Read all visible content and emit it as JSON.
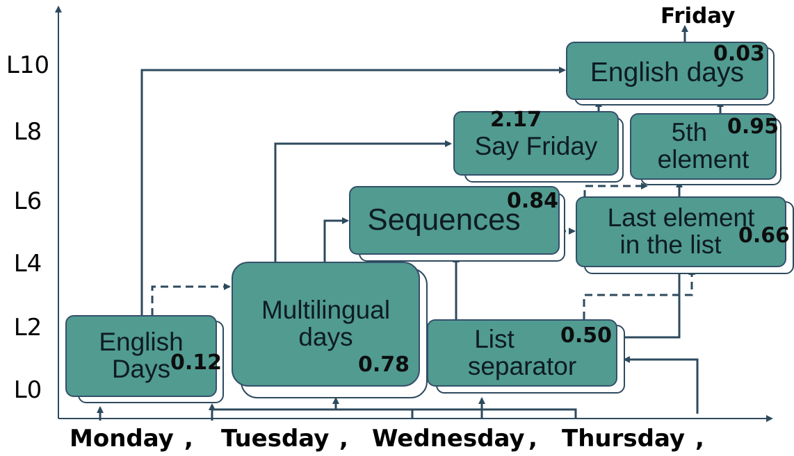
{
  "levels": [
    "L10",
    "L8",
    "L6",
    "L4",
    "L2",
    "L0"
  ],
  "tokens": [
    {
      "word": "Monday",
      "sep": ","
    },
    {
      "word": "Tuesday",
      "sep": ","
    },
    {
      "word": "Wednesday",
      "sep": ","
    },
    {
      "word": "Thursday",
      "sep": ","
    }
  ],
  "output_label": "Friday",
  "nodes": {
    "english_days_l0": {
      "line1": "English",
      "line2": "Days",
      "score": "0.12"
    },
    "multilingual_days": {
      "line1": "Multilingual",
      "line2": "days",
      "score": "0.78"
    },
    "list_separator": {
      "line1": "List",
      "line2": "separator",
      "score": "0.50"
    },
    "sequences": {
      "line1": "Sequences",
      "score": "0.84"
    },
    "last_element": {
      "line1": "Last element",
      "line2": "in the list",
      "score": "0.66"
    },
    "say_friday": {
      "line1": "Say Friday",
      "score": "2.17"
    },
    "fifth_element": {
      "line1": "5th",
      "line2": "element",
      "score": "0.95"
    },
    "english_days_l10": {
      "line1": "English days",
      "score": "0.03"
    }
  },
  "colors": {
    "node_fill": "#519b91",
    "node_border": "#34506a",
    "edge": "#2d4a5e"
  }
}
